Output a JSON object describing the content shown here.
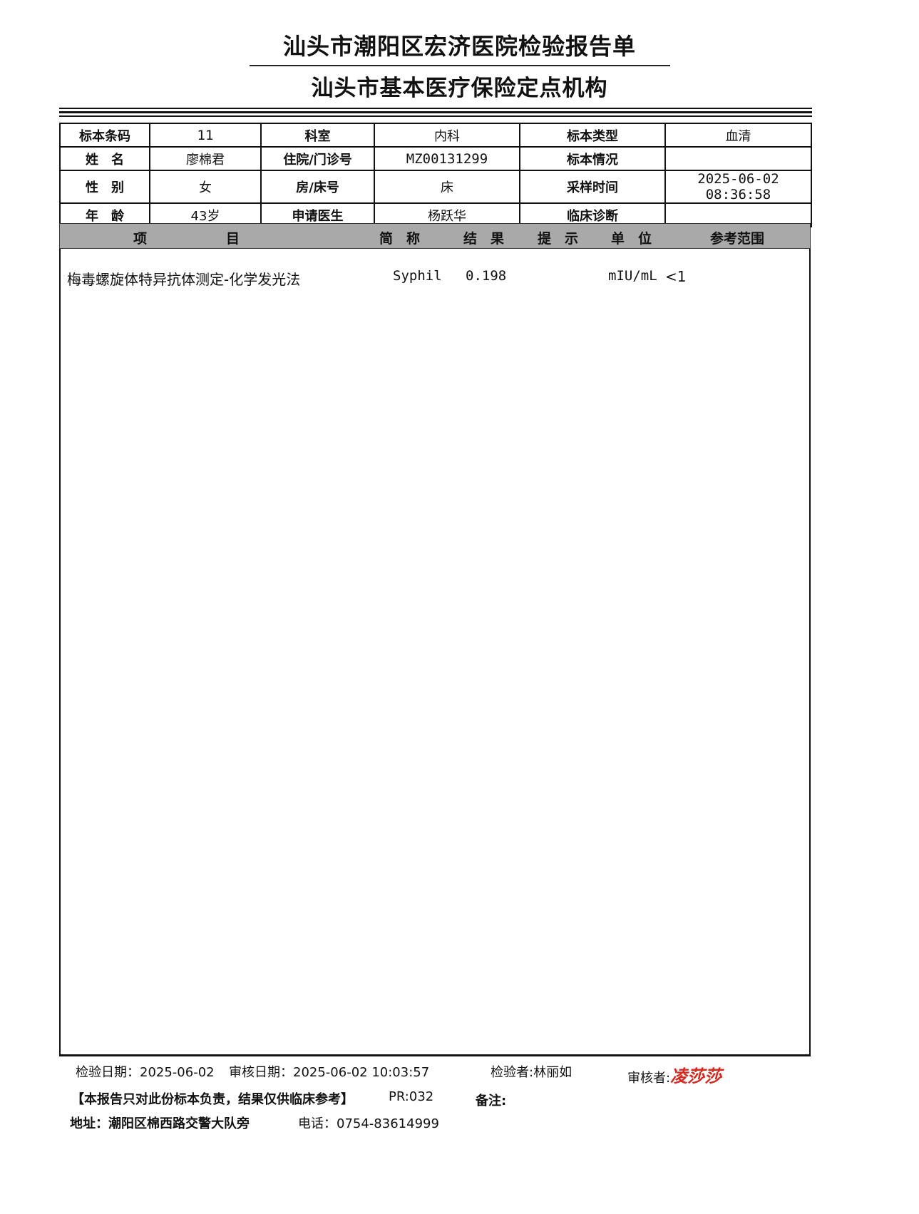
{
  "header": {
    "title": "汕头市潮阳区宏济医院检验报告单",
    "subtitle": "汕头市基本医疗保险定点机构"
  },
  "info": {
    "rows": [
      [
        {
          "label": "标本条码",
          "value": "11"
        },
        {
          "label": "科室",
          "value": "内科"
        },
        {
          "label": "标本类型",
          "value": "血清"
        }
      ],
      [
        {
          "label": "姓　名",
          "value": "廖棉君"
        },
        {
          "label": "住院/门诊号",
          "value": "MZ00131299"
        },
        {
          "label": "标本情况",
          "value": ""
        }
      ],
      [
        {
          "label": "性　别",
          "value": "女"
        },
        {
          "label": "房/床号",
          "value": "床"
        },
        {
          "label": "采样时间",
          "value": "2025-06-02 08:36:58"
        }
      ],
      [
        {
          "label": "年　龄",
          "value": "43岁"
        },
        {
          "label": "申请医生",
          "value": "杨跃华"
        },
        {
          "label": "临床诊断",
          "value": ""
        }
      ]
    ]
  },
  "results": {
    "columns": {
      "item_a": "项",
      "item_b": "目",
      "abbr": "简　称",
      "result": "结　果",
      "flag": "提　示",
      "unit": "单　位",
      "ref": "参考范围"
    },
    "rows": [
      {
        "item": "梅毒螺旋体特异抗体测定-化学发光法",
        "abbr": "Syphil",
        "result": "0.198",
        "flag": "",
        "unit": "mIU/mL",
        "ref": "<1"
      }
    ]
  },
  "footer": {
    "test_date": "检验日期：2025-06-02",
    "review_date": "审核日期：2025-06-02 10:03:57",
    "tester": "检验者:林丽如",
    "reviewer_label": "审核者:",
    "reviewer_signature": "凌莎莎",
    "disclaimer": "【本报告只对此份标本负责，结果仅供临床参考】",
    "pr": "PR:032",
    "remark": "备注:",
    "address": "地址：潮阳区棉西路交警大队旁",
    "phone": "电话：0754-83614999"
  },
  "colors": {
    "signature": "#d8281e",
    "header_band": "#a9a9a9"
  }
}
